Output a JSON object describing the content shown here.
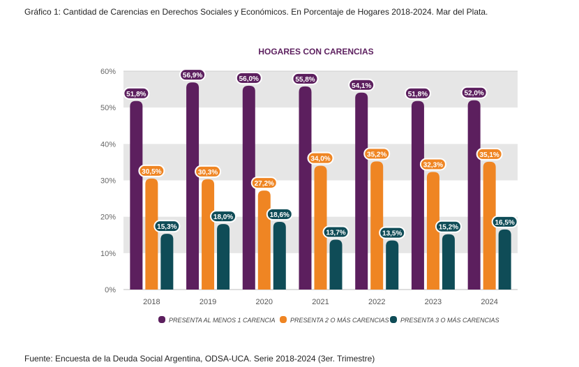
{
  "caption": "Gráfico 1: Cantidad de Carencias en Derechos Sociales y Económicos. En Porcentaje de Hogares 2018-2024. Mar del Plata.",
  "source": "Fuente: Encuesta de la Deuda Social Argentina, ODSA-UCA. Serie 2018-2024 (3er. Trimestre)",
  "colors": {
    "series1": "#5c1f5e",
    "series2": "#ef8523",
    "series3": "#0f4c57",
    "band": "#e6e6e6",
    "title": "#5c1f5e"
  },
  "chart_data": {
    "type": "bar",
    "title": "HOGARES CON CARENCIAS",
    "categories": [
      "2018",
      "2019",
      "2020",
      "2021",
      "2022",
      "2023",
      "2024"
    ],
    "series": [
      {
        "name": "PRESENTA AL MENOS 1 CARENCIA",
        "values": [
          51.8,
          56.9,
          56.0,
          55.8,
          54.1,
          51.8,
          52.0
        ],
        "labels": [
          "51,8%",
          "56,9%",
          "56,0%",
          "55,8%",
          "54,1%",
          "51,8%",
          "52,0%"
        ]
      },
      {
        "name": "PRESENTA 2 O MÁS CARENCIAS",
        "values": [
          30.5,
          30.3,
          27.2,
          34.0,
          35.2,
          32.3,
          35.1
        ],
        "labels": [
          "30,5%",
          "30,3%",
          "27,2%",
          "34,0%",
          "35,2%",
          "32,3%",
          "35,1%"
        ]
      },
      {
        "name": "PRESENTA 3 O MÁS CARENCIAS",
        "values": [
          15.3,
          18.0,
          18.6,
          13.7,
          13.5,
          15.2,
          16.5
        ],
        "labels": [
          "15,3%",
          "18,0%",
          "18,6%",
          "13,7%",
          "13,5%",
          "15,2%",
          "16,5%"
        ]
      }
    ],
    "yticks": [
      0,
      10,
      20,
      30,
      40,
      50,
      60
    ],
    "ytick_labels": [
      "0%",
      "10%",
      "20%",
      "30%",
      "40%",
      "50%",
      "60%"
    ],
    "ylim": [
      0,
      60
    ],
    "grid": "alternating bands",
    "legend_position": "bottom"
  }
}
